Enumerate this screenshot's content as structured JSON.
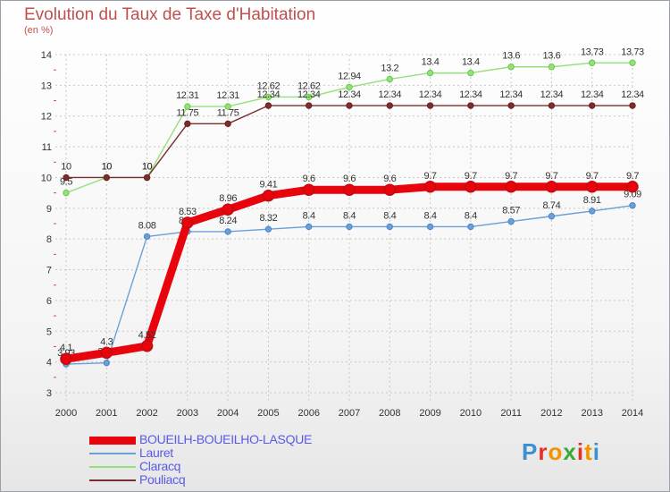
{
  "title": "Evolution du Taux de Taxe d'Habitation",
  "subtitle": "(en %)",
  "logo": {
    "text": "Proxiti",
    "letter_colors": [
      "#3c8fd0",
      "#e5302a",
      "#f29400",
      "#3aaa35",
      "#e5302a",
      "#f29400",
      "#3c8fd0"
    ]
  },
  "chart_data": {
    "type": "line",
    "title": "Evolution du Taux de Taxe d'Habitation",
    "ylabel": "(en %)",
    "xlabel": "",
    "x": [
      "2000",
      "2001",
      "2002",
      "2003",
      "2004",
      "2005",
      "2006",
      "2007",
      "2008",
      "2009",
      "2010",
      "2011",
      "2012",
      "2013",
      "2014"
    ],
    "ylim": [
      3,
      14
    ],
    "yticks": [
      3,
      4,
      5,
      6,
      7,
      8,
      9,
      10,
      11,
      12,
      13,
      14
    ],
    "grid": true,
    "legend": "bottom-left",
    "series": [
      {
        "name": "BOUEILH-BOUEILHO-LASQUE",
        "color": "#e8040d",
        "marker": "#c00b12",
        "values": [
          4.1,
          4.3,
          4.52,
          8.53,
          8.96,
          9.41,
          9.6,
          9.6,
          9.6,
          9.7,
          9.7,
          9.7,
          9.7,
          9.7,
          9.7
        ],
        "labels": [
          "4.1",
          "4.3",
          "4.52",
          "8.53",
          "8.96",
          "9.41",
          "9.6",
          "9.6",
          "9.6",
          "9.7",
          "9.7",
          "9.7",
          "9.7",
          "9.7",
          "9.7"
        ]
      },
      {
        "name": "Lauret",
        "color": "#6b9fd8",
        "marker": "#4a86c8",
        "values": [
          3.93,
          3.97,
          8.08,
          8.24,
          8.24,
          8.32,
          8.4,
          8.4,
          8.4,
          8.4,
          8.4,
          8.57,
          8.74,
          8.91,
          9.09
        ],
        "labels": [
          "3.93",
          "3.97",
          "8.08",
          "8.24",
          "8.24",
          "8.32",
          "8.4",
          "8.4",
          "8.4",
          "8.4",
          "8.4",
          "8.57",
          "8.74",
          "8.91",
          "9.09"
        ]
      },
      {
        "name": "Claracq",
        "color": "#94e07a",
        "marker": "#6cc84b",
        "values": [
          9.5,
          10,
          10,
          12.31,
          12.31,
          12.62,
          12.62,
          12.94,
          13.2,
          13.4,
          13.4,
          13.6,
          13.6,
          13.73,
          13.73
        ],
        "labels": [
          "9.5",
          "10",
          "10",
          "12.31",
          "12.31",
          "12.62",
          "12.62",
          "12.94",
          "13.2",
          "13.4",
          "13.4",
          "13.6",
          "13.6",
          "13.73",
          "13.73"
        ]
      },
      {
        "name": "Pouliacq",
        "color": "#7a2e2e",
        "marker": "#6b1f1f",
        "values": [
          10,
          10,
          10,
          11.75,
          11.75,
          12.34,
          12.34,
          12.34,
          12.34,
          12.34,
          12.34,
          12.34,
          12.34,
          12.34,
          12.34
        ],
        "labels": [
          "10",
          "10",
          "10",
          "11.75",
          "11.75",
          "12.34",
          "12.34",
          "12.34",
          "12.34",
          "12.34",
          "12.34",
          "12.34",
          "12.34",
          "12.34",
          "12.34"
        ]
      }
    ]
  }
}
